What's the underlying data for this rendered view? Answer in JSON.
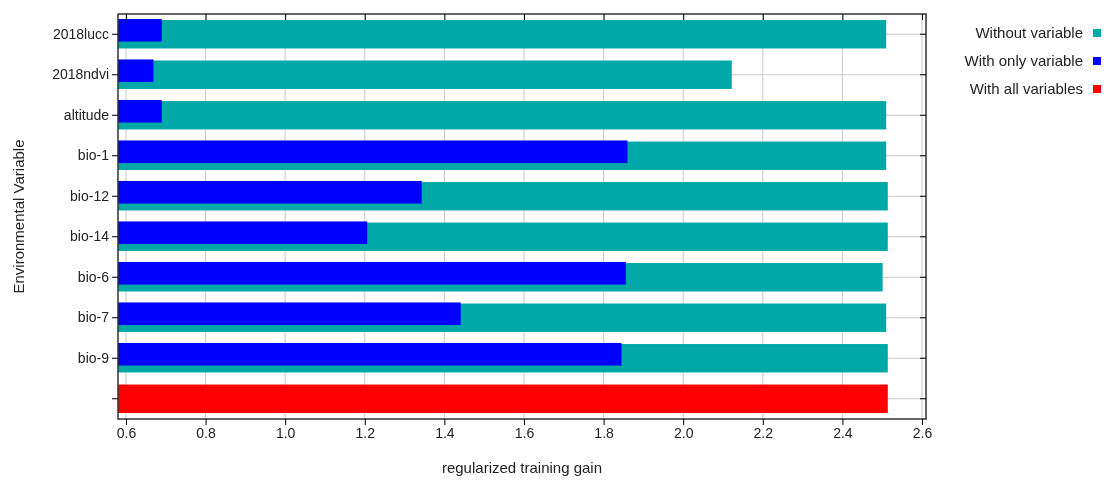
{
  "chart_data": {
    "type": "bar",
    "orientation": "horizontal",
    "xlabel": "regularized training gain",
    "ylabel": "Environmental Variable",
    "categories": [
      "2018lucc",
      "2018ndvi",
      "altitude",
      "bio-1",
      "bio-12",
      "bio-14",
      "bio-6",
      "bio-7",
      "bio-9",
      null
    ],
    "series": [
      {
        "name": "Without variable",
        "color": "#00a8a8",
        "values": [
          2.51,
          2.122,
          2.51,
          2.51,
          2.514,
          2.514,
          2.501,
          2.51,
          2.514,
          null
        ]
      },
      {
        "name": "With only variable",
        "color": "#0000ff",
        "values": [
          0.69,
          0.669,
          0.69,
          1.86,
          1.343,
          1.206,
          1.856,
          1.441,
          1.845,
          null
        ]
      },
      {
        "name": "With all variables",
        "color": "#ff0000",
        "values": [
          null,
          null,
          null,
          null,
          null,
          null,
          null,
          null,
          null,
          2.514
        ]
      }
    ],
    "xlim": [
      0.58,
      2.61
    ],
    "xticks": [
      {
        "value": 0.6,
        "label": "0.6"
      },
      {
        "value": 0.8,
        "label": "0.8"
      },
      {
        "value": 1.0,
        "label": "1.0"
      },
      {
        "value": 1.2,
        "label": "1.2"
      },
      {
        "value": 1.4,
        "label": "1.4"
      },
      {
        "value": 1.6,
        "label": "1.6"
      },
      {
        "value": 1.8,
        "label": "1.8"
      },
      {
        "value": 2.0,
        "label": "2.0"
      },
      {
        "value": 2.2,
        "label": "2.2"
      },
      {
        "value": 2.4,
        "label": "2.4"
      },
      {
        "value": 2.6,
        "label": "2.6"
      }
    ],
    "grid": true,
    "legend": "top right"
  }
}
